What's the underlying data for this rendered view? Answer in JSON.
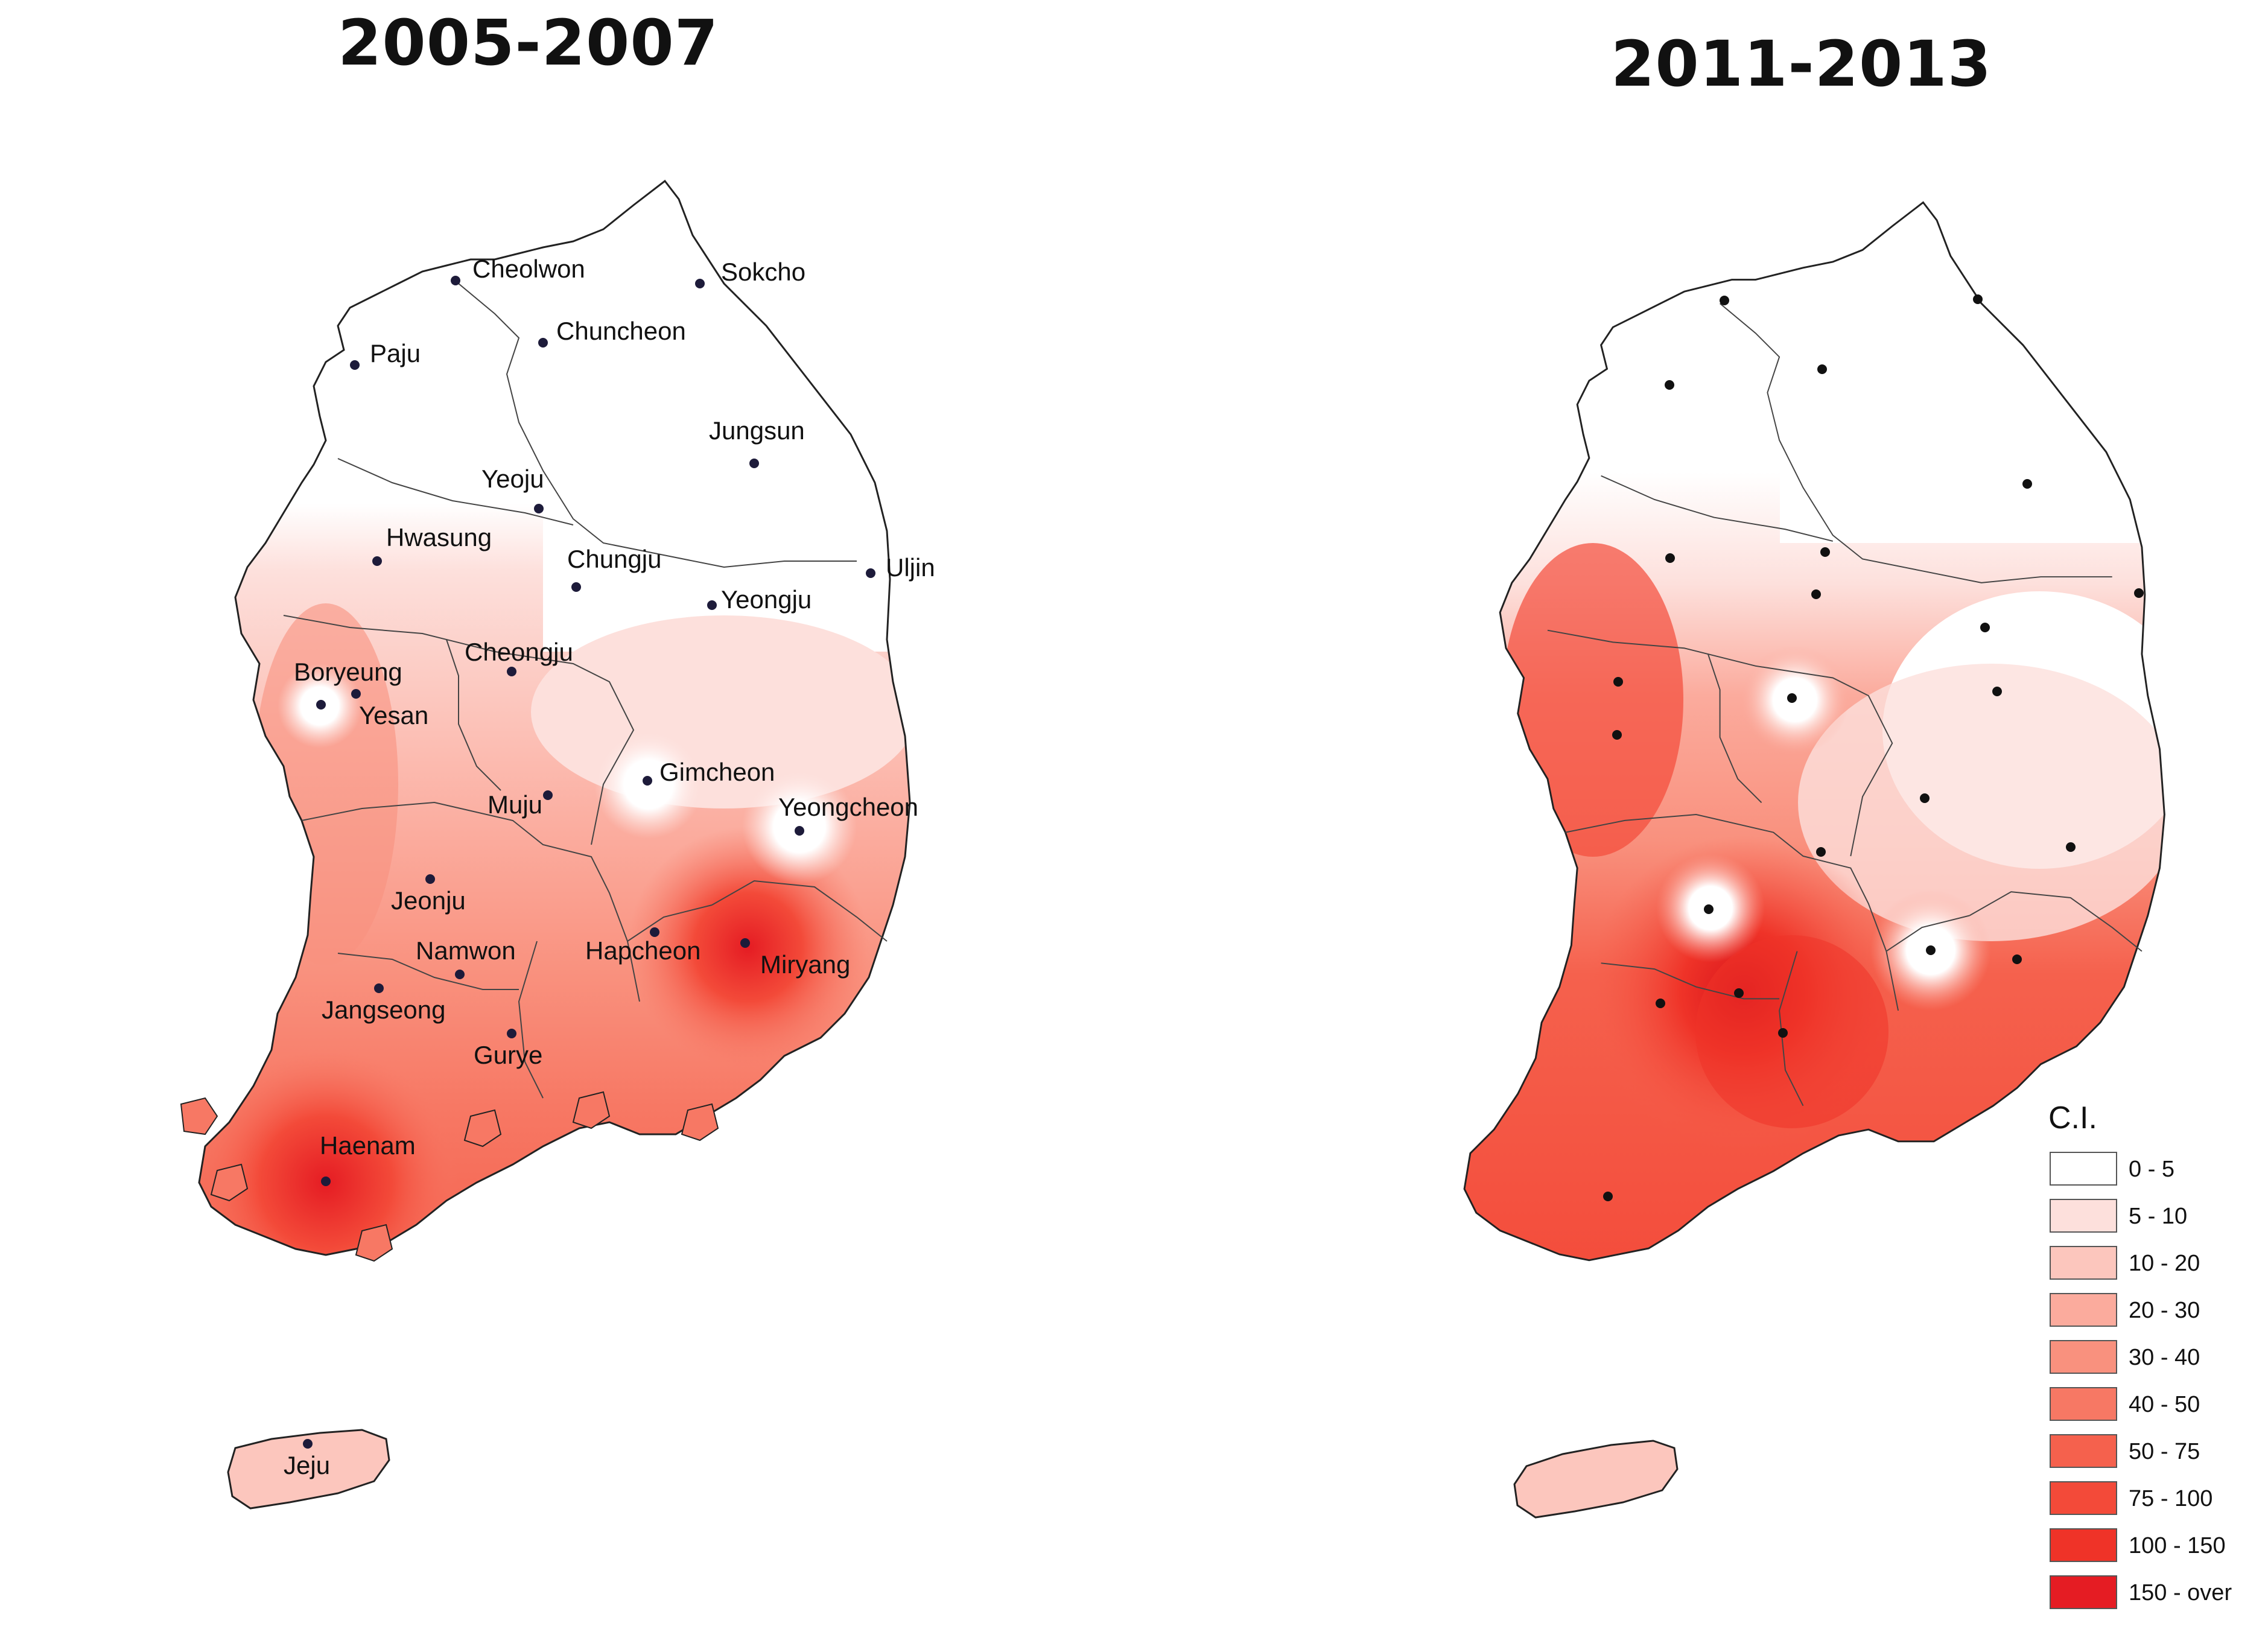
{
  "maps": [
    {
      "title": "2005-2007",
      "cities": [
        {
          "name": "Cheolwon"
        },
        {
          "name": "Sokcho"
        },
        {
          "name": "Chuncheon"
        },
        {
          "name": "Paju"
        },
        {
          "name": "Jungsun"
        },
        {
          "name": "Yeoju"
        },
        {
          "name": "Hwasung"
        },
        {
          "name": "Chungju"
        },
        {
          "name": "Uljin"
        },
        {
          "name": "Yeongju"
        },
        {
          "name": "Cheongju"
        },
        {
          "name": "Boryeung"
        },
        {
          "name": "Yesan"
        },
        {
          "name": "Gimcheon"
        },
        {
          "name": "Yeongcheon"
        },
        {
          "name": "Muju"
        },
        {
          "name": "Jeonju"
        },
        {
          "name": "Hapcheon"
        },
        {
          "name": "Miryang"
        },
        {
          "name": "Namwon"
        },
        {
          "name": "Jangseong"
        },
        {
          "name": "Gurye"
        },
        {
          "name": "Haenam"
        },
        {
          "name": "Jeju"
        }
      ]
    },
    {
      "title": "2011-2013",
      "station_count": 24
    }
  ],
  "legend": {
    "title": "C.I.",
    "classes": [
      {
        "label": "0 - 5",
        "color": "#ffffff"
      },
      {
        "label": "5 - 10",
        "color": "#fde0dc"
      },
      {
        "label": "10 - 20",
        "color": "#fcc6bd"
      },
      {
        "label": "20 - 30",
        "color": "#fbab9d"
      },
      {
        "label": "30 - 40",
        "color": "#f9917e"
      },
      {
        "label": "40 - 50",
        "color": "#f77864"
      },
      {
        "label": "50 - 75",
        "color": "#f5614d"
      },
      {
        "label": "75 - 100",
        "color": "#f34a39"
      },
      {
        "label": "100 - 150",
        "color": "#ef3328"
      },
      {
        "label": "150 - over",
        "color": "#e51c23"
      }
    ]
  }
}
